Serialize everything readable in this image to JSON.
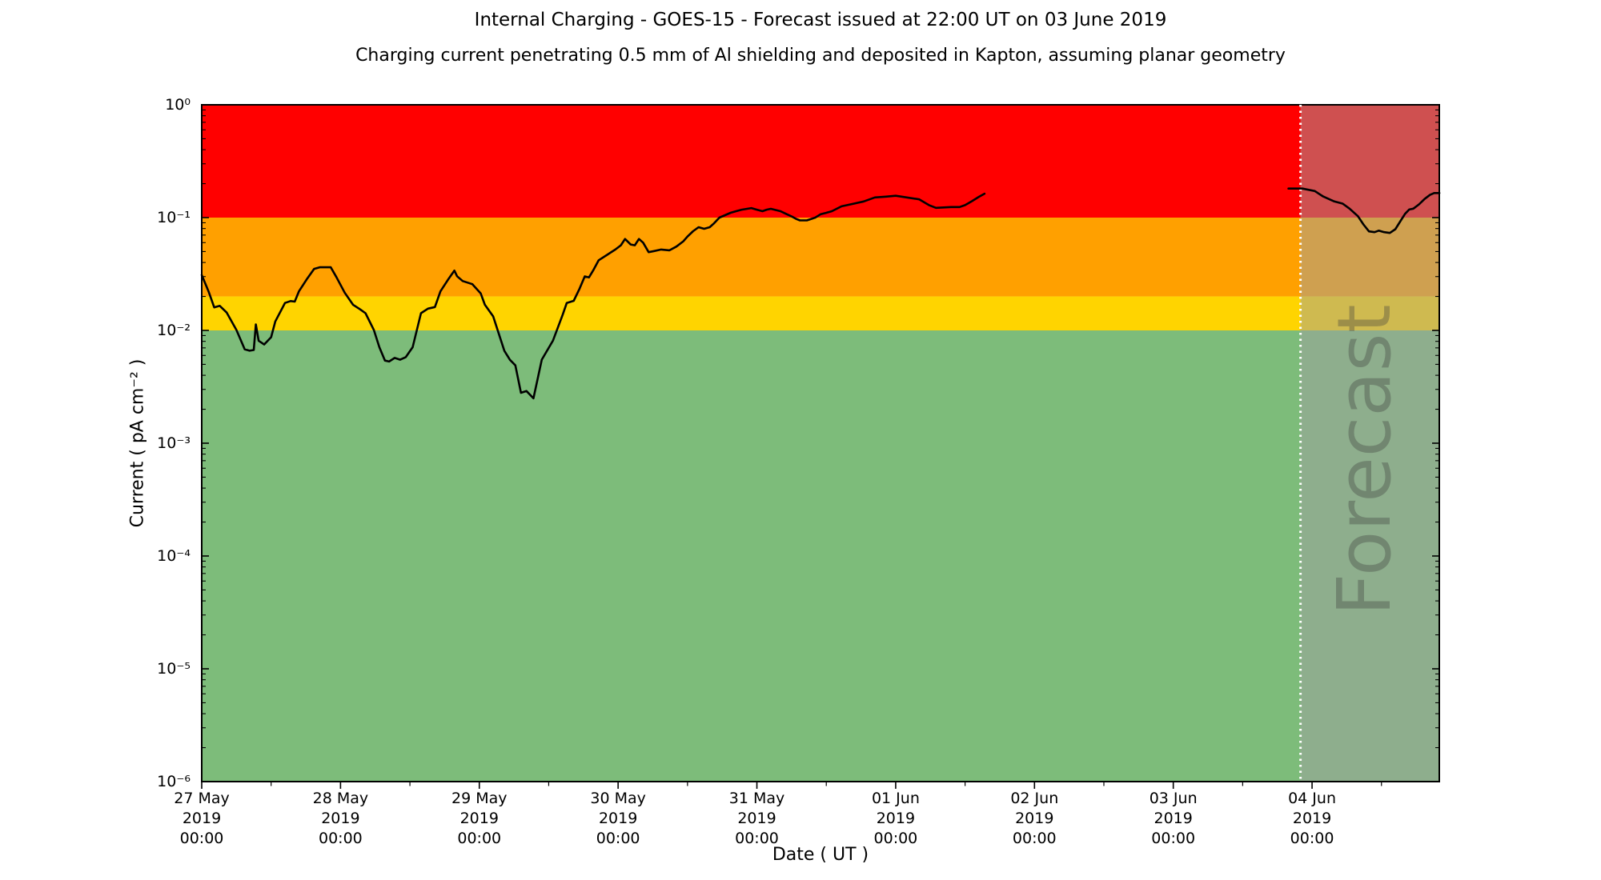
{
  "chart_data": {
    "type": "line",
    "title": "Internal Charging - GOES-15 - Forecast issued at 22:00 UT on 03 June 2019",
    "subtitle": "Charging current penetrating 0.5 mm of Al shielding and deposited in Kapton, assuming planar geometry",
    "xlabel": "Date ( UT )",
    "ylabel": "Current ( pA cm⁻² )",
    "y_axis": {
      "scale": "log",
      "max_exp": 0,
      "min_exp": -6,
      "tick_labels": [
        "10⁰",
        "10⁻¹",
        "10⁻²",
        "10⁻³",
        "10⁻⁴",
        "10⁻⁵",
        "10⁻⁶"
      ]
    },
    "x_axis": {
      "end_day_offset": 8.9167,
      "minor_tick_interval_days": 0.5,
      "ticks": [
        {
          "day": 0,
          "date": "27 May",
          "year": "2019",
          "time": "00:00"
        },
        {
          "day": 1,
          "date": "28 May",
          "year": "2019",
          "time": "00:00"
        },
        {
          "day": 2,
          "date": "29 May",
          "year": "2019",
          "time": "00:00"
        },
        {
          "day": 3,
          "date": "30 May",
          "year": "2019",
          "time": "00:00"
        },
        {
          "day": 4,
          "date": "31 May",
          "year": "2019",
          "time": "00:00"
        },
        {
          "day": 5,
          "date": "01 Jun",
          "year": "2019",
          "time": "00:00"
        },
        {
          "day": 6,
          "date": "02 Jun",
          "year": "2019",
          "time": "00:00"
        },
        {
          "day": 7,
          "date": "03 Jun",
          "year": "2019",
          "time": "00:00"
        },
        {
          "day": 8,
          "date": "04 Jun",
          "year": "2019",
          "time": "00:00"
        }
      ]
    },
    "threshold_bands": [
      {
        "name": "red",
        "color": "#FF0000",
        "from": 0.1,
        "to": 1.0
      },
      {
        "name": "orange",
        "color": "#FFA000",
        "from": 0.02,
        "to": 0.1
      },
      {
        "name": "yellow",
        "color": "#FFD400",
        "from": 0.01,
        "to": 0.02
      },
      {
        "name": "green",
        "color": "#7DBC7A",
        "from": 1e-06,
        "to": 0.01
      }
    ],
    "forecast_region": {
      "label": "Forecast",
      "start_day": 7.9167,
      "end_day": 8.9167,
      "overlay_color": "rgba(160,160,160,0.5)",
      "boundary_line_color": "#FFFFFF",
      "watermark_color": "rgba(60,60,60,0.35)"
    },
    "series": [
      {
        "name": "observed",
        "color": "#000000",
        "points": [
          [
            0.0,
            0.031
          ],
          [
            0.05,
            0.022
          ],
          [
            0.09,
            0.016
          ],
          [
            0.13,
            0.0165
          ],
          [
            0.18,
            0.0144
          ],
          [
            0.25,
            0.0101
          ],
          [
            0.31,
            0.0068
          ],
          [
            0.345,
            0.0066
          ],
          [
            0.375,
            0.0067
          ],
          [
            0.39,
            0.0113
          ],
          [
            0.41,
            0.0081
          ],
          [
            0.45,
            0.0075
          ],
          [
            0.5,
            0.0087
          ],
          [
            0.53,
            0.012
          ],
          [
            0.6,
            0.0175
          ],
          [
            0.64,
            0.0182
          ],
          [
            0.67,
            0.018
          ],
          [
            0.7,
            0.0222
          ],
          [
            0.76,
            0.0288
          ],
          [
            0.81,
            0.0351
          ],
          [
            0.85,
            0.0363
          ],
          [
            0.93,
            0.0363
          ],
          [
            0.97,
            0.0297
          ],
          [
            1.03,
            0.0216
          ],
          [
            1.09,
            0.0169
          ],
          [
            1.14,
            0.0154
          ],
          [
            1.18,
            0.0142
          ],
          [
            1.24,
            0.0101
          ],
          [
            1.28,
            0.0071
          ],
          [
            1.32,
            0.0054
          ],
          [
            1.35,
            0.0053
          ],
          [
            1.39,
            0.0057
          ],
          [
            1.43,
            0.0055
          ],
          [
            1.47,
            0.0058
          ],
          [
            1.52,
            0.0071
          ],
          [
            1.58,
            0.0142
          ],
          [
            1.63,
            0.0156
          ],
          [
            1.68,
            0.0161
          ],
          [
            1.72,
            0.0222
          ],
          [
            1.78,
            0.0288
          ],
          [
            1.82,
            0.0339
          ],
          [
            1.84,
            0.0302
          ],
          [
            1.88,
            0.0274
          ],
          [
            1.95,
            0.0257
          ],
          [
            2.01,
            0.0213
          ],
          [
            2.04,
            0.0169
          ],
          [
            2.1,
            0.0133
          ],
          [
            2.14,
            0.0094
          ],
          [
            2.18,
            0.0066
          ],
          [
            2.22,
            0.0055
          ],
          [
            2.26,
            0.0049
          ],
          [
            2.3,
            0.0028
          ],
          [
            2.34,
            0.0029
          ],
          [
            2.39,
            0.0025
          ],
          [
            2.45,
            0.0055
          ],
          [
            2.53,
            0.0081
          ],
          [
            2.6,
            0.0137
          ],
          [
            2.63,
            0.0175
          ],
          [
            2.68,
            0.0183
          ],
          [
            2.72,
            0.0231
          ],
          [
            2.76,
            0.0301
          ],
          [
            2.79,
            0.0295
          ],
          [
            2.82,
            0.0339
          ],
          [
            2.86,
            0.0419
          ],
          [
            2.92,
            0.0467
          ],
          [
            2.98,
            0.0521
          ],
          [
            3.02,
            0.0568
          ],
          [
            3.05,
            0.0647
          ],
          [
            3.09,
            0.0578
          ],
          [
            3.12,
            0.0568
          ],
          [
            3.15,
            0.0647
          ],
          [
            3.18,
            0.06
          ],
          [
            3.22,
            0.0494
          ],
          [
            3.26,
            0.0505
          ],
          [
            3.31,
            0.0521
          ],
          [
            3.37,
            0.0513
          ],
          [
            3.42,
            0.0554
          ],
          [
            3.47,
            0.0617
          ],
          [
            3.5,
            0.0679
          ],
          [
            3.54,
            0.0758
          ],
          [
            3.58,
            0.0822
          ],
          [
            3.62,
            0.0796
          ],
          [
            3.66,
            0.0822
          ],
          [
            3.69,
            0.0888
          ],
          [
            3.73,
            0.1
          ],
          [
            3.77,
            0.105
          ],
          [
            3.81,
            0.1103
          ],
          [
            3.85,
            0.1139
          ],
          [
            3.89,
            0.1176
          ],
          [
            3.96,
            0.1215
          ],
          [
            4.0,
            0.1176
          ],
          [
            4.04,
            0.1139
          ],
          [
            4.07,
            0.1176
          ],
          [
            4.1,
            0.1196
          ],
          [
            4.17,
            0.1139
          ],
          [
            4.21,
            0.108
          ],
          [
            4.25,
            0.1024
          ],
          [
            4.28,
            0.0977
          ],
          [
            4.31,
            0.0945
          ],
          [
            4.36,
            0.0945
          ],
          [
            4.42,
            0.1
          ],
          [
            4.46,
            0.1073
          ],
          [
            4.5,
            0.1103
          ],
          [
            4.54,
            0.1139
          ],
          [
            4.61,
            0.1259
          ],
          [
            4.69,
            0.1322
          ],
          [
            4.77,
            0.139
          ],
          [
            4.85,
            0.151
          ],
          [
            4.93,
            0.1535
          ],
          [
            5.0,
            0.1561
          ],
          [
            5.08,
            0.151
          ],
          [
            5.17,
            0.145
          ],
          [
            5.24,
            0.129
          ],
          [
            5.29,
            0.122
          ],
          [
            5.4,
            0.124
          ],
          [
            5.46,
            0.124
          ],
          [
            5.5,
            0.129
          ],
          [
            5.55,
            0.14
          ],
          [
            5.6,
            0.153
          ],
          [
            5.64,
            0.163
          ]
        ]
      },
      {
        "name": "forecast",
        "color": "#000000",
        "points": [
          [
            7.83,
            0.181
          ],
          [
            7.93,
            0.181
          ],
          [
            8.02,
            0.172
          ],
          [
            8.08,
            0.154
          ],
          [
            8.16,
            0.139
          ],
          [
            8.22,
            0.133
          ],
          [
            8.27,
            0.12
          ],
          [
            8.33,
            0.103
          ],
          [
            8.37,
            0.087
          ],
          [
            8.41,
            0.0755
          ],
          [
            8.45,
            0.0743
          ],
          [
            8.48,
            0.0766
          ],
          [
            8.52,
            0.0743
          ],
          [
            8.56,
            0.0731
          ],
          [
            8.6,
            0.0789
          ],
          [
            8.64,
            0.0945
          ],
          [
            8.67,
            0.108
          ],
          [
            8.7,
            0.118
          ],
          [
            8.73,
            0.12
          ],
          [
            8.77,
            0.131
          ],
          [
            8.81,
            0.146
          ],
          [
            8.85,
            0.159
          ],
          [
            8.88,
            0.165
          ],
          [
            8.917,
            0.165
          ]
        ]
      }
    ]
  }
}
